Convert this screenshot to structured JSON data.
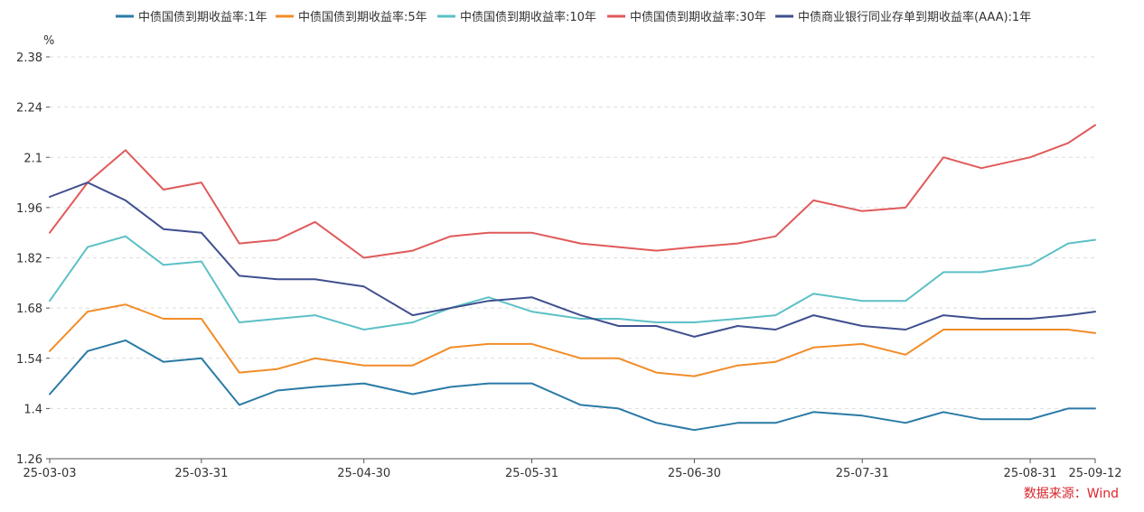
{
  "chart_data": {
    "type": "line",
    "y_unit": "%",
    "ylim": [
      1.26,
      2.38
    ],
    "y_ticks": [
      "2.38",
      "2.24",
      "2.1",
      "1.96",
      "1.82",
      "1.68",
      "1.54",
      "1.4",
      "1.26"
    ],
    "x_tick_labels": [
      "25-03-03",
      "25-03-31",
      "25-04-30",
      "25-05-31",
      "25-06-30",
      "25-07-31",
      "25-08-31",
      "25-09-12"
    ],
    "x_dates": [
      "2025-03-03",
      "2025-03-10",
      "2025-03-17",
      "2025-03-24",
      "2025-03-31",
      "2025-04-07",
      "2025-04-14",
      "2025-04-21",
      "2025-04-30",
      "2025-05-09",
      "2025-05-16",
      "2025-05-23",
      "2025-05-31",
      "2025-06-09",
      "2025-06-16",
      "2025-06-23",
      "2025-06-30",
      "2025-07-08",
      "2025-07-15",
      "2025-07-22",
      "2025-07-31",
      "2025-08-08",
      "2025-08-15",
      "2025-08-22",
      "2025-08-31",
      "2025-09-07",
      "2025-09-12"
    ],
    "grid": "horizontal-dashed",
    "legend_position": "top",
    "series": [
      {
        "name": "中债国债到期收益率:1年",
        "color": "#2a7aa6",
        "values": [
          1.44,
          1.56,
          1.59,
          1.53,
          1.54,
          1.41,
          1.45,
          1.46,
          1.47,
          1.44,
          1.46,
          1.47,
          1.47,
          1.41,
          1.4,
          1.36,
          1.34,
          1.36,
          1.36,
          1.39,
          1.38,
          1.36,
          1.39,
          1.37,
          1.37,
          1.4,
          1.4
        ]
      },
      {
        "name": "中债国债到期收益率:5年",
        "color": "#f28c28",
        "values": [
          1.56,
          1.67,
          1.69,
          1.65,
          1.65,
          1.5,
          1.51,
          1.54,
          1.52,
          1.52,
          1.57,
          1.58,
          1.58,
          1.54,
          1.54,
          1.5,
          1.49,
          1.52,
          1.53,
          1.57,
          1.58,
          1.55,
          1.62,
          1.62,
          1.62,
          1.62,
          1.61
        ]
      },
      {
        "name": "中债国债到期收益率:10年",
        "color": "#5cc0c6",
        "values": [
          1.7,
          1.85,
          1.88,
          1.8,
          1.81,
          1.64,
          1.65,
          1.66,
          1.62,
          1.64,
          1.68,
          1.71,
          1.67,
          1.65,
          1.65,
          1.64,
          1.64,
          1.65,
          1.66,
          1.72,
          1.7,
          1.7,
          1.78,
          1.78,
          1.8,
          1.86,
          1.87
        ]
      },
      {
        "name": "中债国债到期收益率:30年",
        "color": "#e05a5a",
        "values": [
          1.89,
          2.03,
          2.12,
          2.01,
          2.03,
          1.86,
          1.87,
          1.92,
          1.82,
          1.84,
          1.88,
          1.89,
          1.89,
          1.86,
          1.85,
          1.84,
          1.85,
          1.86,
          1.88,
          1.98,
          1.95,
          1.96,
          2.1,
          2.07,
          2.1,
          2.14,
          2.19
        ]
      },
      {
        "name": "中债商业银行同业存单到期收益率(AAA):1年",
        "color": "#3f4f8f",
        "values": [
          1.99,
          2.03,
          1.98,
          1.9,
          1.89,
          1.77,
          1.76,
          1.76,
          1.74,
          1.66,
          1.68,
          1.7,
          1.71,
          1.66,
          1.63,
          1.63,
          1.6,
          1.63,
          1.62,
          1.66,
          1.63,
          1.62,
          1.66,
          1.65,
          1.65,
          1.66,
          1.67
        ]
      }
    ]
  },
  "source_label": "数据来源：Wind"
}
